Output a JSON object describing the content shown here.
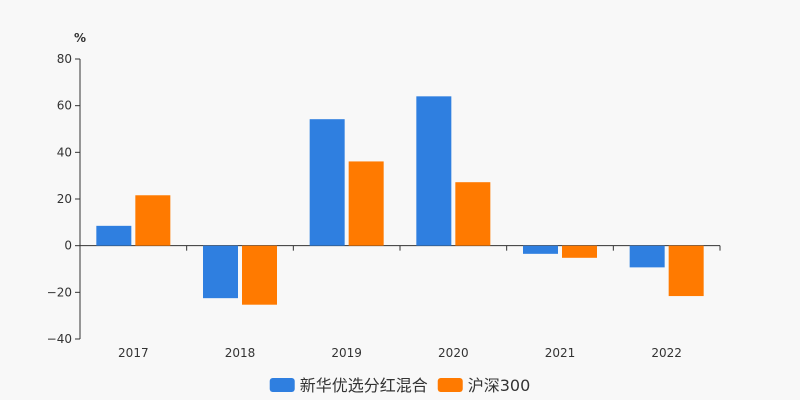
{
  "chart_data": {
    "type": "bar",
    "unit_label": "%",
    "categories": [
      "2017",
      "2018",
      "2019",
      "2020",
      "2021",
      "2022"
    ],
    "series": [
      {
        "name": "新华优选分红混合",
        "color": "#2f7fe0",
        "values": [
          8.5,
          -22.5,
          54.2,
          64.0,
          -3.5,
          -9.3
        ]
      },
      {
        "name": "沪深300",
        "color": "#ff7a00",
        "values": [
          21.6,
          -25.3,
          36.1,
          27.2,
          -5.2,
          -21.6
        ]
      }
    ],
    "ylim": [
      -40,
      80
    ],
    "yticks": [
      -40,
      -20,
      0,
      20,
      40,
      60,
      80
    ],
    "grid": false,
    "legend_position": "bottom-center"
  }
}
